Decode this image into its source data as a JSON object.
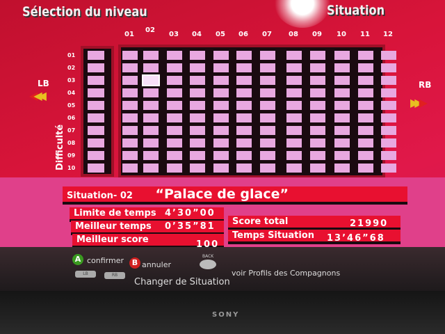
{
  "header": {
    "title": "Sélection du niveau",
    "right_title": "Situation"
  },
  "grid": {
    "columns": [
      "01",
      "02",
      "03",
      "04",
      "05",
      "06",
      "07",
      "08",
      "09",
      "10",
      "11",
      "12"
    ],
    "rows": [
      "01",
      "02",
      "03",
      "04",
      "05",
      "06",
      "07",
      "08",
      "09",
      "10"
    ],
    "row_axis_label": "Difficulté",
    "selected": {
      "column": "02",
      "row": "03"
    }
  },
  "nav": {
    "left": "LB",
    "right": "RB"
  },
  "info": {
    "situation_label": "Situation- 02",
    "situation_name": "“Palace de glace”",
    "time_limit_label": "Limite de temps",
    "time_limit": "4’30”00",
    "best_time_label": "Meilleur temps",
    "best_time": "0’35”81",
    "best_score_label": "Meilleur score",
    "best_score": "100",
    "total_score_label": "Score total",
    "total_score": "21990",
    "situation_time_label": "Temps Situation",
    "situation_time": "13’46”68"
  },
  "controls": {
    "a_label": "A",
    "confirm": "confirmer",
    "b_label": "B",
    "cancel": "annuler",
    "back_label": "BACK",
    "profiles": "voir Profils des Compagnons",
    "lb_label": "LB",
    "rb_label": "RB",
    "change": "Changer de Situation"
  },
  "tv": {
    "brand": "SONY"
  },
  "colors": {
    "accent": "#e81030",
    "cell": "#e8a8e0",
    "a_button": "#3a9a20",
    "b_button": "#d02020"
  }
}
